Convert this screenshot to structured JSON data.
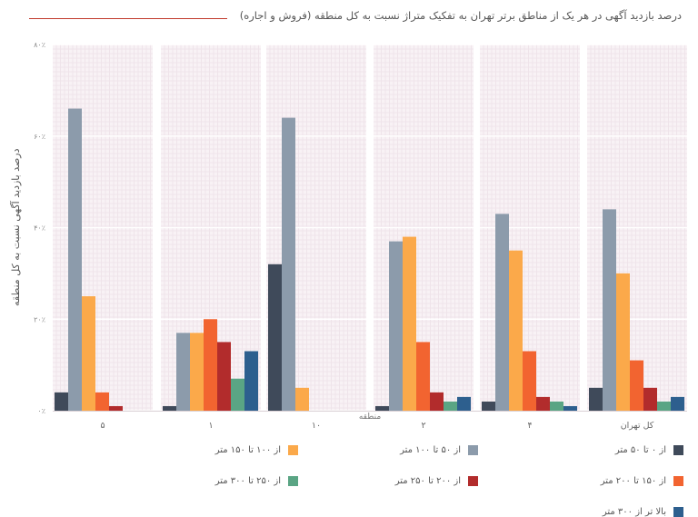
{
  "chart_data": {
    "type": "bar",
    "title": "درصد بازدید آگهی در هر یک از مناطق برتر تهران به تفکیک متراژ نسبت به کل منطقه (فروش و اجاره)",
    "xlabel": "منطقه",
    "ylabel": "درصد بازدید آگهی نسبت به کل منطقه",
    "ylim": [
      0,
      80
    ],
    "yticks": [
      0,
      20,
      40,
      60,
      80
    ],
    "ytick_labels": [
      "۰٪",
      "۲۰٪",
      "۴۰٪",
      "۶۰٪",
      "۸۰٪"
    ],
    "categories": [
      "۵",
      "۱",
      "۱۰",
      "۲",
      "۴",
      "کل تهران"
    ],
    "grid": true,
    "legend_position": "bottom",
    "series": [
      {
        "name": "از ۰ تا ۵۰ متر",
        "color": "#3f4a5a",
        "values": [
          4,
          1,
          32,
          1,
          2,
          5
        ]
      },
      {
        "name": "از ۵۰ تا ۱۰۰ متر",
        "color": "#8c9bab",
        "values": [
          66,
          17,
          64,
          37,
          43,
          44
        ]
      },
      {
        "name": "از ۱۰۰ تا ۱۵۰ متر",
        "color": "#fba94a",
        "values": [
          25,
          17,
          5,
          38,
          35,
          30
        ]
      },
      {
        "name": "از ۱۵۰ تا ۲۰۰ متر",
        "color": "#f26430",
        "values": [
          4,
          20,
          0,
          15,
          13,
          11
        ]
      },
      {
        "name": "از ۲۰۰ تا ۲۵۰ متر",
        "color": "#b22c2c",
        "values": [
          1,
          15,
          0,
          4,
          3,
          5
        ]
      },
      {
        "name": "از ۲۵۰ تا ۳۰۰ متر",
        "color": "#5aa584",
        "values": [
          0,
          7,
          0,
          2,
          2,
          2
        ]
      },
      {
        "name": "بالا تر از ۳۰۰ متر",
        "color": "#2d5f8e",
        "values": [
          0,
          13,
          0,
          3,
          1,
          3
        ]
      }
    ]
  }
}
